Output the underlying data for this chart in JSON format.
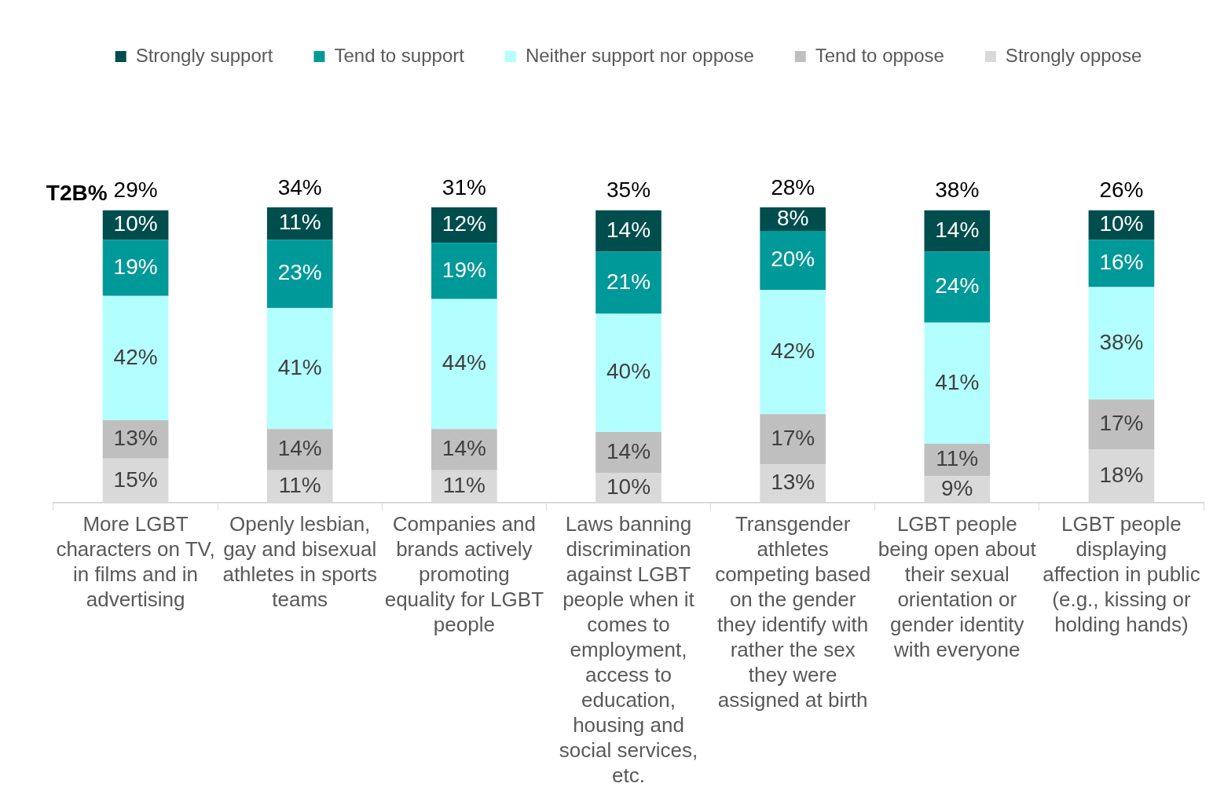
{
  "chart_data": {
    "type": "bar",
    "stacked": true,
    "legend": "top",
    "categories": [
      "More LGBT characters on TV, in films and in advertising",
      "Openly lesbian, gay and bisexual athletes in sports teams",
      "Companies and brands actively promoting equality for LGBT people",
      "Laws banning discrimination against LGBT people when it comes to employment, access to education, housing and social services, etc.",
      "Transgender athletes competing based on the gender they identify with rather the sex they were assigned at birth",
      "LGBT people being open about their sexual orientation or gender identity with everyone",
      "LGBT people displaying affection in public (e.g., kissing or holding hands)"
    ],
    "series": [
      {
        "name": "Strongly oppose",
        "color": "#d9d9d9",
        "values": [
          15,
          11,
          11,
          10,
          13,
          9,
          18
        ],
        "value_labels": [
          "15%",
          "11%",
          "11%",
          "10%",
          "13%",
          "9%",
          "18%"
        ]
      },
      {
        "name": "Tend to oppose",
        "color": "#bfbfbf",
        "values": [
          13,
          14,
          14,
          14,
          17,
          11,
          17
        ],
        "value_labels": [
          "13%",
          "14%",
          "14%",
          "14%",
          "17%",
          "11%",
          "17%"
        ]
      },
      {
        "name": "Neither support nor oppose",
        "color": "#b3ffff",
        "values": [
          42,
          41,
          44,
          40,
          42,
          41,
          38
        ],
        "value_labels": [
          "42%",
          "41%",
          "44%",
          "40%",
          "42%",
          "41%",
          "38%"
        ]
      },
      {
        "name": "Tend to support",
        "color": "#009999",
        "values": [
          19,
          23,
          19,
          21,
          20,
          24,
          16
        ],
        "value_labels": [
          "19%",
          "23%",
          "19%",
          "21%",
          "20%",
          "24%",
          "16%"
        ]
      },
      {
        "name": "Strongly support",
        "color": "#004d4d",
        "values": [
          10,
          11,
          12,
          14,
          8,
          14,
          10
        ],
        "value_labels": [
          "10%",
          "11%",
          "12%",
          "14%",
          "8%",
          "14%",
          "10%"
        ]
      }
    ],
    "annotations": [
      "T2B%",
      {
        "text": "29%",
        "x": "More LGBT characters on TV, in films and in advertising",
        "y": 99
      },
      {
        "text": "34%",
        "x": "Openly lesbian, gay and bisexual athletes in sports teams",
        "y": 100
      },
      {
        "text": "31%",
        "x": "Companies and brands actively promoting equality for LGBT people",
        "y": 100
      },
      {
        "text": "35%",
        "x": "Laws banning discrimination against LGBT people when it comes to employment, access to education, housing and social services, etc.",
        "y": 99
      },
      {
        "text": "28%",
        "x": "Transgender athletes competing based on the gender they identify with rather the sex they were assigned at birth",
        "y": 100
      },
      {
        "text": "38%",
        "x": "LGBT people being open about their sexual orientation or gender identity with everyone",
        "y": 99
      },
      {
        "text": "26%",
        "x": "LGBT people displaying affection in public (e.g., kissing or holding hands)",
        "y": 99
      }
    ]
  }
}
